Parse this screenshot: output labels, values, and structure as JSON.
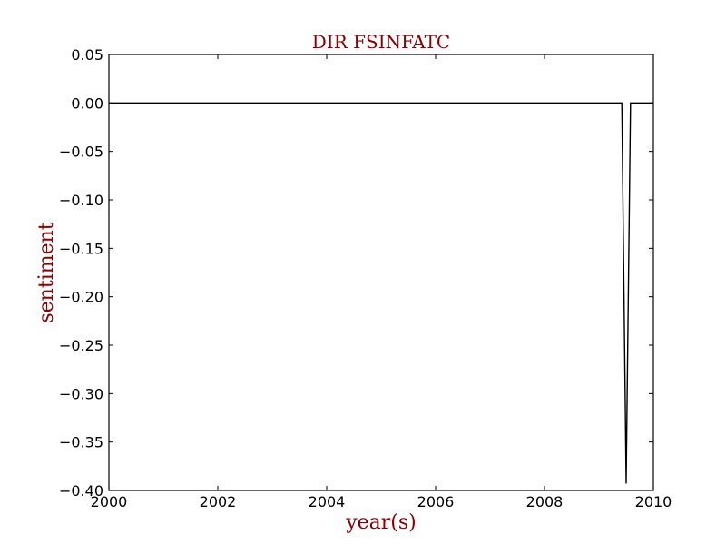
{
  "chart_data": {
    "type": "line",
    "title": "DIR FSINFATC",
    "xlabel": "year(s)",
    "ylabel": "sentiment",
    "xlim": [
      2000,
      2010
    ],
    "ylim": [
      -0.4,
      0.05
    ],
    "x_ticks": [
      "2000",
      "2002",
      "2004",
      "2006",
      "2008",
      "2010"
    ],
    "y_ticks": [
      "0.05",
      "0.00",
      "−0.05",
      "−0.10",
      "−0.15",
      "−0.20",
      "−0.25",
      "−0.30",
      "−0.35",
      "−0.40"
    ],
    "grid": false,
    "series": [
      {
        "x": [
          2000.0,
          2009.42,
          2009.5,
          2009.58,
          2010.0
        ],
        "y": [
          0.0,
          0.0,
          -0.393,
          0.0,
          0.0
        ]
      }
    ]
  },
  "colors": {
    "title": "#8b0000",
    "axis_label": "#8b0000",
    "line": "#000000",
    "frame": "#000000"
  }
}
